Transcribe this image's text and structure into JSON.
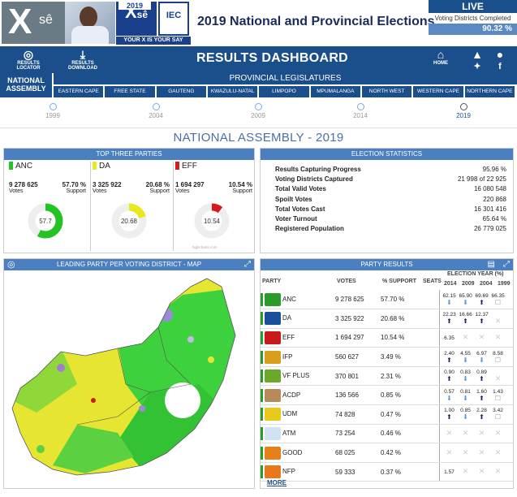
{
  "header": {
    "title": "2019 National and Provincial Elections",
    "logo_text": "X",
    "logo_sub": "sê",
    "iec_year": "2019",
    "iec_label": "IEC",
    "slogan": "YOUR X IS YOUR SAY",
    "live_label": "LIVE",
    "live_sub": "Voting Districts Completed",
    "live_pct": "90.32 %",
    "live_progress": 0.9032
  },
  "nav": {
    "results_locator": "RESULTS LOCATOR",
    "results_download": "RESULTS DOWNLOAD",
    "dashboard_title": "RESULTS DASHBOARD",
    "home": "HOME",
    "national_assembly": "NATIONAL ASSEMBLY",
    "provincial_legislatures": "PROVINCIAL LEGISLATURES",
    "provinces": [
      "EASTERN CAPE",
      "FREE STATE",
      "GAUTENG",
      "KWAZULU-NATAL",
      "LIMPOPO",
      "MPUMALANGA",
      "NORTH WEST",
      "WESTERN CAPE",
      "NORTHERN CAPE"
    ]
  },
  "years": [
    "1999",
    "2004",
    "2009",
    "2014",
    "2019"
  ],
  "selected_year": "2019",
  "page_title": "NATIONAL ASSEMBLY - 2019",
  "top_three": {
    "title": "TOP THREE PARTIES",
    "parties": [
      {
        "name": "ANC",
        "votes": "9 278 625",
        "votes_label": "Votes",
        "pct": "57.70 %",
        "pct_label": "Support",
        "donut": "57.7",
        "fraction": 0.577,
        "color": "#22c322"
      },
      {
        "name": "DA",
        "votes": "3 325 922",
        "votes_label": "Votes",
        "pct": "20.68 %",
        "pct_label": "Support",
        "donut": "20.68",
        "fraction": 0.2068,
        "color": "#e8e81a"
      },
      {
        "name": "EFF",
        "votes": "1 694 297",
        "votes_label": "Votes",
        "pct": "10.54 %",
        "pct_label": "Support",
        "donut": "10.54",
        "fraction": 0.1054,
        "color": "#d91a1a"
      }
    ],
    "credit": "highcharts.com"
  },
  "election_stats": {
    "title": "ELECTION STATISTICS",
    "rows": [
      {
        "label": "Results Capturing Progress",
        "value": "95.96 %"
      },
      {
        "label": "Voting Districts Captured",
        "value": "21 998 of 22 925"
      },
      {
        "label": "Total Valid Votes",
        "value": "16 080 548"
      },
      {
        "label": "Spoilt Votes",
        "value": "220 868"
      },
      {
        "label": "Total Votes Cast",
        "value": "16 301 416"
      },
      {
        "label": "Voter Turnout",
        "value": "65.64 %"
      },
      {
        "label": "Registered Population",
        "value": "26 779 025"
      }
    ]
  },
  "map": {
    "title": "LEADING PARTY PER VOTING DISTRICT - MAP"
  },
  "party_results": {
    "title": "PARTY RESULTS",
    "election_year_label": "ELECTION YEAR (%)",
    "col_party": "PARTY",
    "col_votes": "VOTES",
    "col_support": "% SUPPORT",
    "col_seats": "SEATS",
    "year_cols": [
      "2014",
      "2009",
      "2004",
      "1999"
    ],
    "more": "MORE",
    "rows": [
      {
        "name": "ANC",
        "votes": "9 278 625",
        "support": "57.70 %",
        "color": "#2a9a2a",
        "hist": [
          {
            "v": "62.15",
            "d": "down"
          },
          {
            "v": "65.90",
            "d": "down"
          },
          {
            "v": "69.69",
            "d": "up"
          },
          {
            "v": "66.35",
            "d": "box"
          }
        ]
      },
      {
        "name": "DA",
        "votes": "3 325 922",
        "support": "20.68 %",
        "color": "#1a4f9c",
        "hist": [
          {
            "v": "22.23",
            "d": "up"
          },
          {
            "v": "16.66",
            "d": "up"
          },
          {
            "v": "12.37",
            "d": "up"
          },
          {
            "v": "",
            "d": "none"
          }
        ]
      },
      {
        "name": "EFF",
        "votes": "1 694 297",
        "support": "10.54 %",
        "color": "#c81a1a",
        "hist": [
          {
            "v": "6.35",
            "d": "plain"
          },
          {
            "v": "",
            "d": "none"
          },
          {
            "v": "",
            "d": "none"
          },
          {
            "v": "",
            "d": "none"
          }
        ]
      },
      {
        "name": "IFP",
        "votes": "560 627",
        "support": "3.49 %",
        "color": "#d8a01a",
        "hist": [
          {
            "v": "2.40",
            "d": "up"
          },
          {
            "v": "4.55",
            "d": "down"
          },
          {
            "v": "6.97",
            "d": "down"
          },
          {
            "v": "8.58",
            "d": "box"
          }
        ]
      },
      {
        "name": "VF PLUS",
        "votes": "370 801",
        "support": "2.31 %",
        "color": "#6aa82a",
        "hist": [
          {
            "v": "0.90",
            "d": "up"
          },
          {
            "v": "0.83",
            "d": "down"
          },
          {
            "v": "0.89",
            "d": "up"
          },
          {
            "v": "",
            "d": "none"
          }
        ]
      },
      {
        "name": "ACDP",
        "votes": "136 566",
        "support": "0.85 %",
        "color": "#b88a5a",
        "hist": [
          {
            "v": "0.57",
            "d": "down"
          },
          {
            "v": "0.81",
            "d": "down"
          },
          {
            "v": "1.60",
            "d": "up"
          },
          {
            "v": "1.43",
            "d": "box"
          }
        ]
      },
      {
        "name": "UDM",
        "votes": "74 828",
        "support": "0.47 %",
        "color": "#e8c81a",
        "hist": [
          {
            "v": "1.00",
            "d": "up"
          },
          {
            "v": "0.85",
            "d": "down"
          },
          {
            "v": "2.28",
            "d": "up"
          },
          {
            "v": "3.42",
            "d": "box"
          }
        ]
      },
      {
        "name": "ATM",
        "votes": "73 254",
        "support": "0.46 %",
        "color": "#cfe3f3",
        "hist": [
          {
            "v": "",
            "d": "none"
          },
          {
            "v": "",
            "d": "none"
          },
          {
            "v": "",
            "d": "none"
          },
          {
            "v": "",
            "d": "none"
          }
        ]
      },
      {
        "name": "GOOD",
        "votes": "68 025",
        "support": "0.42 %",
        "color": "#e8801a",
        "hist": [
          {
            "v": "",
            "d": "none"
          },
          {
            "v": "",
            "d": "none"
          },
          {
            "v": "",
            "d": "none"
          },
          {
            "v": "",
            "d": "none"
          }
        ]
      },
      {
        "name": "NFP",
        "votes": "59 333",
        "support": "0.37 %",
        "color": "#e8781a",
        "hist": [
          {
            "v": "1.57",
            "d": "plain"
          },
          {
            "v": "",
            "d": "none"
          },
          {
            "v": "",
            "d": "none"
          },
          {
            "v": "",
            "d": "none"
          }
        ]
      }
    ]
  }
}
